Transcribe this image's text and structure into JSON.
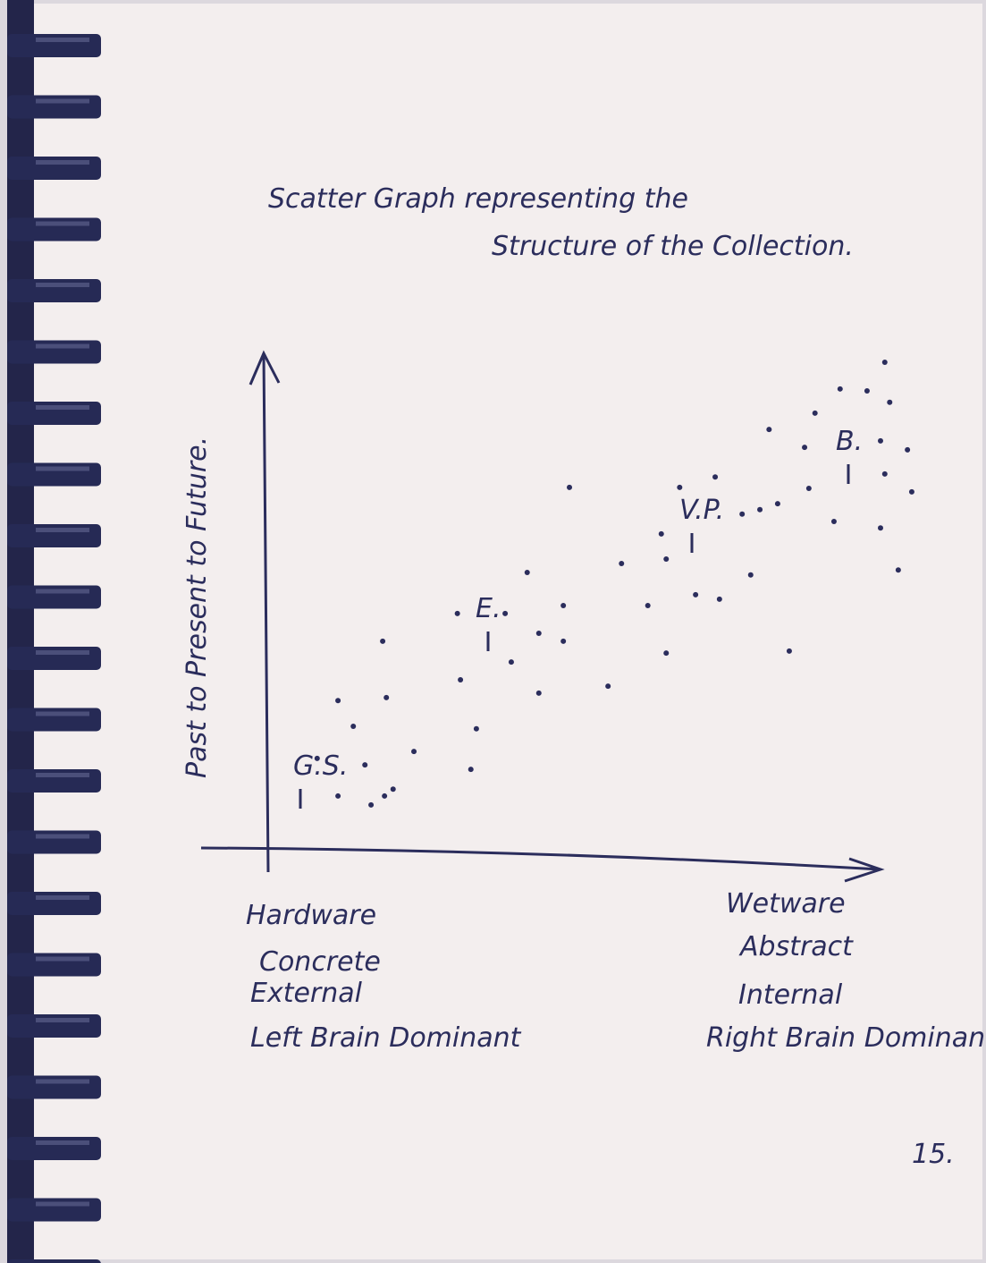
{
  "chart_data": {
    "type": "scatter",
    "title": [
      "Scatter Graph representing the",
      "Structure of the Collection."
    ],
    "y_label": "Past to Present to Future.",
    "x_labels_left": [
      "Hardware",
      "Concrete",
      "External",
      "Left Brain Dominant"
    ],
    "x_labels_right": [
      "Wetware",
      "Abstract",
      "Internal",
      "Right Brain Dominant"
    ],
    "annotations": [
      "G.S.",
      "E.",
      "V.P.",
      "B."
    ],
    "page_number": "15.",
    "color": "#2b2d5c",
    "xlim": [
      0,
      110
    ],
    "ylim": [
      0,
      100
    ],
    "x": [
      8.0,
      11.4,
      13.9,
      15.8,
      11.4,
      16.8,
      19.0,
      19.3,
      20.4,
      23.8,
      18.7,
      33.1,
      34.0,
      31.4,
      30.9,
      38.7,
      39.7,
      42.3,
      44.2,
      44.2,
      48.2,
      48.2,
      49.2,
      55.5,
      57.7,
      62.0,
      64.2,
      65.0,
      65.0,
      67.2,
      69.8,
      73.0,
      73.7,
      77.4,
      78.8,
      80.3,
      83.2,
      85.1,
      87.6,
      88.3,
      89.3,
      93.4,
      92.4,
      97.8,
      100.7,
      101.5,
      100.0,
      104.4,
      105.1,
      100.7,
      100.0,
      102.9,
      81.8
    ],
    "y": [
      18.1,
      29.8,
      24.6,
      16.8,
      10.5,
      8.7,
      10.5,
      30.4,
      11.9,
      19.5,
      41.8,
      15.9,
      24.1,
      34.0,
      47.4,
      47.4,
      37.6,
      55.7,
      43.4,
      31.3,
      49.0,
      41.8,
      72.9,
      32.7,
      57.5,
      49.0,
      63.5,
      58.4,
      39.4,
      72.9,
      51.2,
      75.0,
      50.3,
      67.5,
      55.2,
      68.4,
      69.6,
      39.8,
      81.0,
      72.7,
      87.9,
      92.8,
      66.0,
      92.4,
      98.2,
      90.1,
      82.3,
      80.5,
      72.0,
      75.6,
      64.7,
      56.2,
      84.6
    ]
  }
}
